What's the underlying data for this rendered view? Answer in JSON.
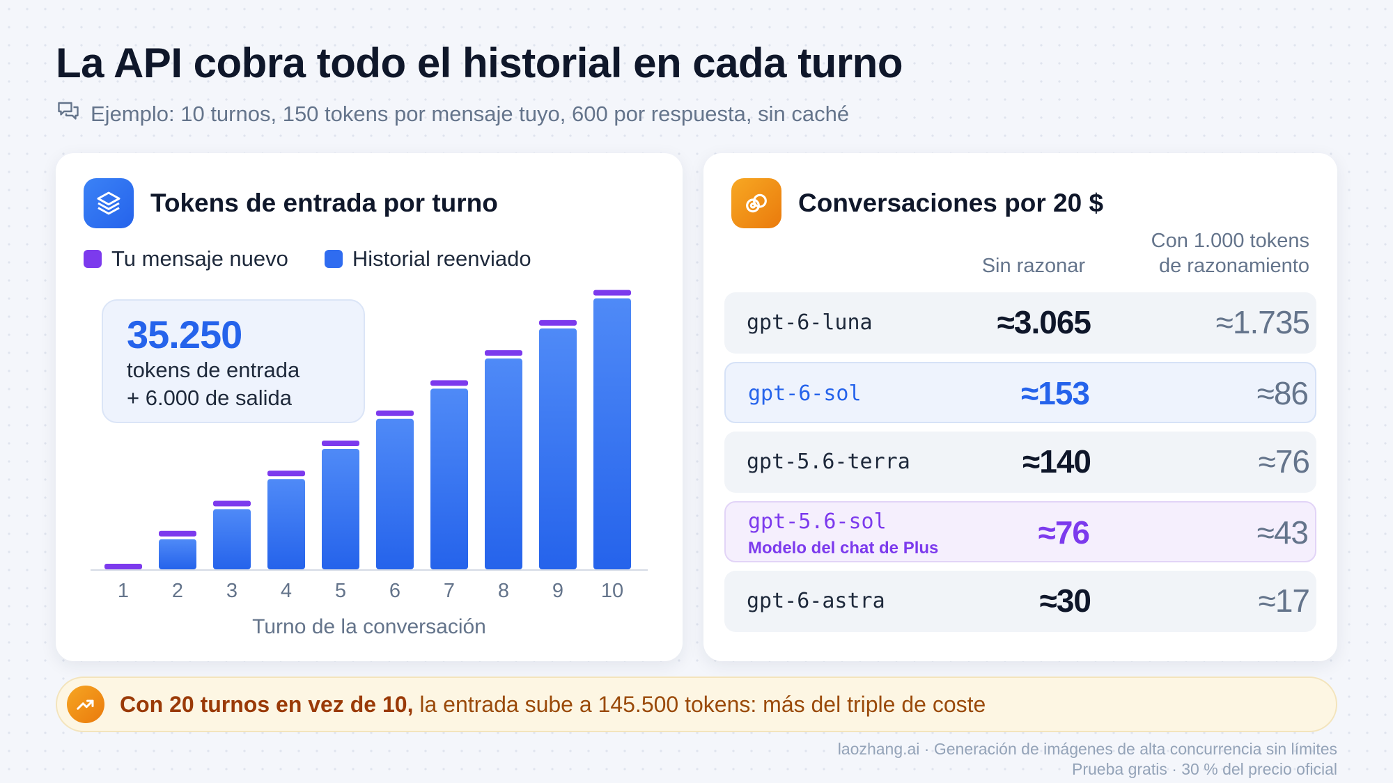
{
  "header": {
    "title": "La API cobra todo el historial en cada turno",
    "subtitle": "Ejemplo: 10 turnos, 150 tokens por mensaje tuyo, 600 por respuesta, sin caché"
  },
  "left_card": {
    "title": "Tokens de entrada por turno",
    "icon": "layers-icon",
    "callout": {
      "number": "35.250",
      "line1": "tokens de entrada",
      "line2": "+ 6.000 de salida"
    }
  },
  "chart_data": {
    "type": "bar",
    "stacked": true,
    "categories": [
      "1",
      "2",
      "3",
      "4",
      "5",
      "6",
      "7",
      "8",
      "9",
      "10"
    ],
    "series": [
      {
        "name": "Tu mensaje nuevo",
        "color": "#7c3aed",
        "values": [
          150,
          150,
          150,
          150,
          150,
          150,
          150,
          150,
          150,
          150
        ]
      },
      {
        "name": "Historial reenviado",
        "color": "#2f6cf0",
        "values": [
          0,
          750,
          1500,
          2250,
          3000,
          3750,
          4500,
          5250,
          6000,
          6750
        ]
      }
    ],
    "title": "Tokens de entrada por turno",
    "xlabel": "Turno de la conversación",
    "ylabel": "",
    "ylim": [
      0,
      6900
    ],
    "grid": false,
    "legend": "top-left"
  },
  "right_card": {
    "title": "Conversaciones por 20 $",
    "icon": "link-coins-icon",
    "col_a": "Sin razonar",
    "col_b_line1": "Con 1.000 tokens",
    "col_b_line2": "de razonamiento",
    "rows": [
      {
        "model": "gpt-6-luna",
        "sub": "",
        "a": "≈3.065",
        "b": "≈1.735",
        "style": "plain"
      },
      {
        "model": "gpt-6-sol",
        "sub": "",
        "a": "≈153",
        "b": "≈86",
        "style": "blue"
      },
      {
        "model": "gpt-5.6-terra",
        "sub": "",
        "a": "≈140",
        "b": "≈76",
        "style": "plain"
      },
      {
        "model": "gpt-5.6-sol",
        "sub": "Modelo del chat de Plus",
        "a": "≈76",
        "b": "≈43",
        "style": "purple"
      },
      {
        "model": "gpt-6-astra",
        "sub": "",
        "a": "≈30",
        "b": "≈17",
        "style": "plain"
      }
    ],
    "colors": {
      "blue": "#2563eb",
      "purple": "#7c3aed",
      "plain": "#0f172a"
    }
  },
  "banner": {
    "bold": "Con 20 turnos en vez de 10,",
    "rest": " la entrada sube a 145.500 tokens: más del triple de coste",
    "icon": "trend-up-icon"
  },
  "footer": {
    "line1": "laozhang.ai · Generación de imágenes de alta concurrencia sin límites",
    "line2": "Prueba gratis · 30 % del precio oficial"
  }
}
